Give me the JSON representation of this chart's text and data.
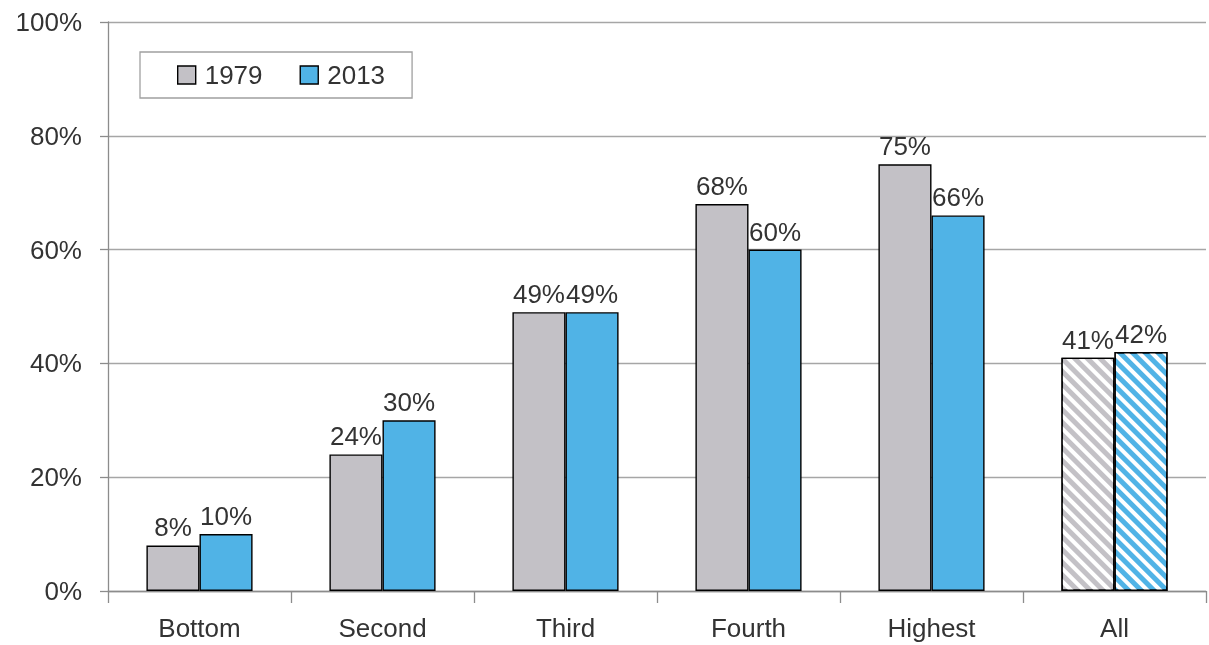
{
  "chart_data": {
    "type": "bar",
    "categories": [
      "Bottom",
      "Second",
      "Third",
      "Fourth",
      "Highest",
      "All"
    ],
    "series": [
      {
        "name": "1979",
        "color": "#c3c1c6",
        "values": [
          8,
          24,
          49,
          68,
          75,
          41
        ],
        "value_labels": [
          "8%",
          "24%",
          "49%",
          "68%",
          "75%",
          "41%"
        ]
      },
      {
        "name": "2013",
        "color": "#50b3e6",
        "values": [
          10,
          30,
          49,
          60,
          66,
          42
        ],
        "value_labels": [
          "10%",
          "30%",
          "49%",
          "60%",
          "66%",
          "42%"
        ]
      }
    ],
    "ylim": [
      0,
      100
    ],
    "yticks": [
      {
        "value": 0,
        "label": "0%"
      },
      {
        "value": 20,
        "label": "20%"
      },
      {
        "value": 40,
        "label": "40%"
      },
      {
        "value": 60,
        "label": "60%"
      },
      {
        "value": 80,
        "label": "80%"
      },
      {
        "value": 100,
        "label": "100%"
      }
    ],
    "grid": "y",
    "legend": "top left"
  }
}
